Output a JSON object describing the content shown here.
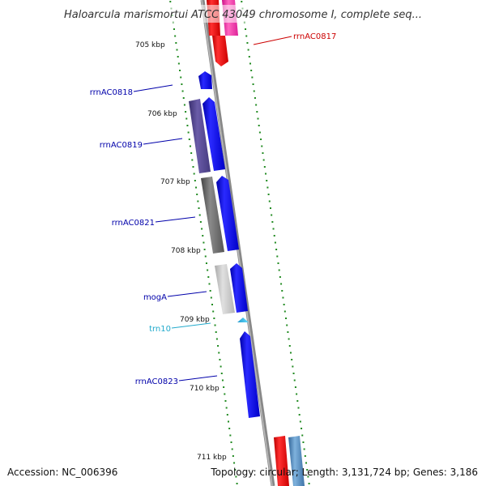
{
  "title": "Haloarcula marismortui ATCC 43049 chromosome I, complete seq...",
  "accession": "Accession: NC_006396",
  "topology": "Topology: circular; Length: 3,131,724 bp; Genes: 3,186",
  "kbp_labels": [
    "705 kbp",
    "706 kbp",
    "707 kbp",
    "708 kbp",
    "709 kbp",
    "710 kbp",
    "711 kbp"
  ],
  "gene_labels": [
    "rrnAC0817",
    "rrnAC0818",
    "rrnAC0819",
    "rrnAC0821",
    "mogA",
    "trn10",
    "rrnAC0823"
  ],
  "colors": {
    "forward_cds": "#0000ee",
    "rna": "#ee0000",
    "trna": "#33bbee",
    "ticks": "#228b22",
    "backbone": "#888888",
    "label_blue": "#0000aa",
    "label_red": "#cc0000",
    "label_cyan": "#22aacc"
  }
}
